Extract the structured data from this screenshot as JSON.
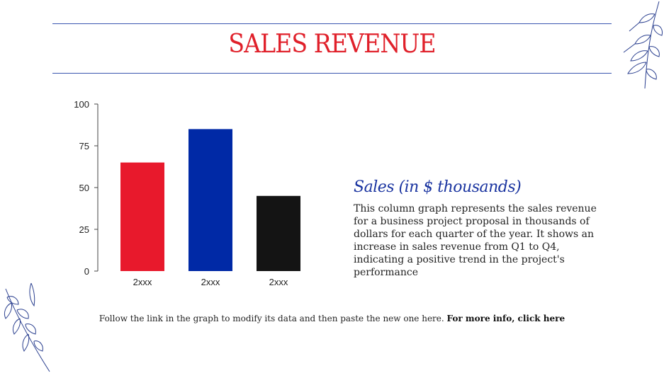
{
  "slide": {
    "title": "SALES REVENUE",
    "subtitle": "Sales (in $ thousands)",
    "description": "This column graph represents the sales revenue for a business project proposal in thousands of dollars for each quarter of the year. It shows an increase in sales revenue from Q1 to Q4, indicating a positive trend in the project's performance",
    "footer_text": "Follow the link in the graph to modify its data and then paste the new one here.",
    "footer_link": "For more info, click here"
  },
  "colors": {
    "title": "#e0202a",
    "subtitle": "#1a34a0",
    "rule": "#3a56b0",
    "leaf": "#2a3f8f"
  },
  "icons": [
    "leaf-branch-icon-top-right",
    "leaf-branch-icon-bottom-left"
  ],
  "chart_data": {
    "type": "bar",
    "categories": [
      "2xxx",
      "2xxx",
      "2xxx"
    ],
    "values": [
      65,
      85,
      45
    ],
    "bar_colors": [
      "#e8192c",
      "#0029a6",
      "#141414"
    ],
    "title": "",
    "xlabel": "",
    "ylabel": "",
    "ylim": [
      0,
      100
    ],
    "yticks": [
      0,
      25,
      50,
      75,
      100
    ],
    "grid": false
  }
}
